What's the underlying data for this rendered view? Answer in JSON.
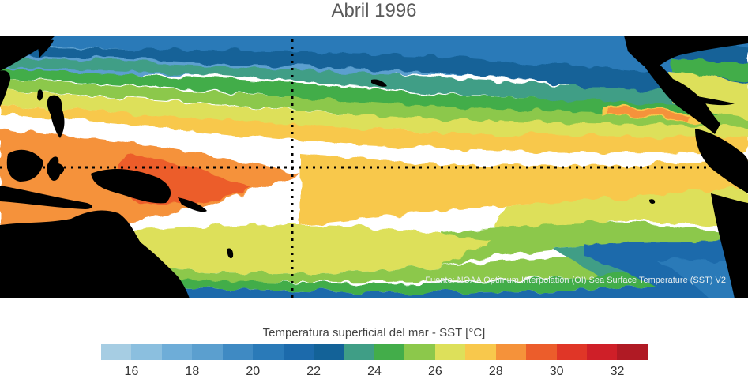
{
  "title": "Abril 1996",
  "source": "Fuente: NOAA Optimum Interpolation (OI) Sea Surface Temperature (SST) V2",
  "colorbar": {
    "label": "Temperatura superficial del mar - SST  [°C]",
    "bins": [
      {
        "min": 15,
        "color": "#a6cde3"
      },
      {
        "min": 16,
        "color": "#8bbfdf"
      },
      {
        "min": 17,
        "color": "#6eadd8"
      },
      {
        "min": 18,
        "color": "#5b9fcf"
      },
      {
        "min": 19,
        "color": "#3f8ac3"
      },
      {
        "min": 20,
        "color": "#2a7ab8"
      },
      {
        "min": 21,
        "color": "#1c6aab"
      },
      {
        "min": 22,
        "color": "#136298"
      },
      {
        "min": 23,
        "color": "#3f9e86"
      },
      {
        "min": 24,
        "color": "#43ad4a"
      },
      {
        "min": 25,
        "color": "#8cc84b"
      },
      {
        "min": 26,
        "color": "#dde05a"
      },
      {
        "min": 27,
        "color": "#f8c84c"
      },
      {
        "min": 28,
        "color": "#f5923a"
      },
      {
        "min": 29,
        "color": "#ec5d2b"
      },
      {
        "min": 30,
        "color": "#e03627"
      },
      {
        "min": 31,
        "color": "#cf1f28"
      },
      {
        "min": 32,
        "color": "#b01a24"
      }
    ],
    "tick_labels": [
      "16",
      "18",
      "20",
      "22",
      "24",
      "26",
      "28",
      "30",
      "32"
    ],
    "tick_values": [
      16,
      18,
      20,
      22,
      24,
      26,
      28,
      30,
      32
    ]
  },
  "map": {
    "region": "Tropical Pacific Ocean",
    "land_color": "#000000",
    "reference_lines": [
      "equator",
      "dateline"
    ],
    "reference_line_style": "dotted black"
  }
}
